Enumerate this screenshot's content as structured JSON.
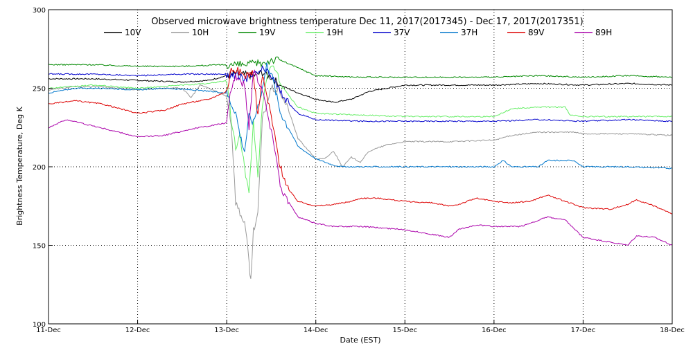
{
  "chart_data": {
    "type": "line",
    "title": "Observed microwave brightness temperature Dec 11, 2017(2017345) - Dec 17, 2017(2017351)",
    "xlabel": "Date (EST)",
    "ylabel": "Brightness Temperature, Deg K",
    "x_unit": "day",
    "xlim": [
      11,
      18
    ],
    "ylim": [
      100,
      300
    ],
    "x_ticks": [
      11,
      12,
      13,
      14,
      15,
      16,
      17,
      18
    ],
    "x_tick_labels": [
      "11-Dec",
      "12-Dec",
      "13-Dec",
      "14-Dec",
      "15-Dec",
      "16-Dec",
      "17-Dec",
      "18-Dec"
    ],
    "y_ticks": [
      100,
      150,
      200,
      250,
      300
    ],
    "y_tick_labels": [
      "100",
      "150",
      "200",
      "250",
      "300"
    ],
    "grid": "dotted",
    "legend_position": "top",
    "series": [
      {
        "name": "10V",
        "color": "#000000",
        "points": [
          [
            11,
            256
          ],
          [
            11.5,
            256
          ],
          [
            12,
            255
          ],
          [
            12.5,
            254
          ],
          [
            12.8,
            255
          ],
          [
            13.0,
            258
          ],
          [
            13.1,
            259
          ],
          [
            13.3,
            258
          ],
          [
            13.4,
            260
          ],
          [
            13.5,
            257
          ],
          [
            13.6,
            252
          ],
          [
            13.8,
            247
          ],
          [
            14.0,
            243
          ],
          [
            14.2,
            241
          ],
          [
            14.4,
            243
          ],
          [
            14.6,
            248
          ],
          [
            15.0,
            252
          ],
          [
            15.5,
            252
          ],
          [
            16.0,
            252
          ],
          [
            16.5,
            253
          ],
          [
            17.0,
            252
          ],
          [
            17.5,
            253
          ],
          [
            18,
            252
          ]
        ]
      },
      {
        "name": "10H",
        "color": "#999999",
        "points": [
          [
            11,
            249
          ],
          [
            11.3,
            251
          ],
          [
            11.6,
            251
          ],
          [
            12,
            249
          ],
          [
            12.3,
            250
          ],
          [
            12.5,
            250
          ],
          [
            12.6,
            244
          ],
          [
            12.7,
            252
          ],
          [
            12.8,
            250
          ],
          [
            13.0,
            245
          ],
          [
            13.05,
            228
          ],
          [
            13.1,
            178
          ],
          [
            13.15,
            170
          ],
          [
            13.2,
            165
          ],
          [
            13.25,
            140
          ],
          [
            13.27,
            127
          ],
          [
            13.3,
            160
          ],
          [
            13.35,
            170
          ],
          [
            13.4,
            230
          ],
          [
            13.5,
            250
          ],
          [
            13.6,
            248
          ],
          [
            13.7,
            235
          ],
          [
            13.8,
            218
          ],
          [
            14.0,
            205
          ],
          [
            14.1,
            205
          ],
          [
            14.2,
            210
          ],
          [
            14.3,
            200
          ],
          [
            14.4,
            206
          ],
          [
            14.5,
            203
          ],
          [
            14.6,
            210
          ],
          [
            14.8,
            214
          ],
          [
            15.0,
            216
          ],
          [
            15.5,
            216
          ],
          [
            16.0,
            217
          ],
          [
            16.2,
            220
          ],
          [
            16.5,
            222
          ],
          [
            16.9,
            222
          ],
          [
            17.0,
            221
          ],
          [
            17.5,
            221
          ],
          [
            18,
            220
          ]
        ]
      },
      {
        "name": "19V",
        "color": "#008800",
        "points": [
          [
            11,
            265
          ],
          [
            11.5,
            265
          ],
          [
            12,
            264
          ],
          [
            12.5,
            264
          ],
          [
            13.0,
            265
          ],
          [
            13.2,
            265
          ],
          [
            13.4,
            266
          ],
          [
            13.5,
            268
          ],
          [
            13.6,
            268
          ],
          [
            13.8,
            263
          ],
          [
            14.0,
            258
          ],
          [
            14.5,
            257
          ],
          [
            15.0,
            257
          ],
          [
            15.5,
            257
          ],
          [
            16.0,
            257
          ],
          [
            16.5,
            258
          ],
          [
            17.0,
            257
          ],
          [
            17.5,
            258
          ],
          [
            18,
            257
          ]
        ]
      },
      {
        "name": "19H",
        "color": "#66ee66",
        "points": [
          [
            11,
            250
          ],
          [
            11.5,
            252
          ],
          [
            12,
            250
          ],
          [
            12.5,
            252
          ],
          [
            12.8,
            253
          ],
          [
            13.0,
            255
          ],
          [
            13.05,
            230
          ],
          [
            13.1,
            212
          ],
          [
            13.15,
            220
          ],
          [
            13.2,
            200
          ],
          [
            13.25,
            182
          ],
          [
            13.3,
            228
          ],
          [
            13.35,
            195
          ],
          [
            13.4,
            240
          ],
          [
            13.45,
            258
          ],
          [
            13.5,
            262
          ],
          [
            13.55,
            262
          ],
          [
            13.6,
            254
          ],
          [
            13.7,
            245
          ],
          [
            13.8,
            238
          ],
          [
            14.0,
            234
          ],
          [
            14.5,
            233
          ],
          [
            15.0,
            232
          ],
          [
            15.5,
            232
          ],
          [
            16.0,
            232
          ],
          [
            16.2,
            237
          ],
          [
            16.5,
            238
          ],
          [
            16.8,
            238
          ],
          [
            16.85,
            233
          ],
          [
            17.0,
            232
          ],
          [
            17.5,
            232
          ],
          [
            18,
            232
          ]
        ]
      },
      {
        "name": "37V",
        "color": "#0000cc",
        "points": [
          [
            11,
            259
          ],
          [
            11.5,
            259
          ],
          [
            12,
            258
          ],
          [
            12.5,
            259
          ],
          [
            13.0,
            259
          ],
          [
            13.1,
            258
          ],
          [
            13.2,
            256
          ],
          [
            13.3,
            258
          ],
          [
            13.4,
            262
          ],
          [
            13.5,
            258
          ],
          [
            13.6,
            248
          ],
          [
            13.7,
            240
          ],
          [
            13.8,
            234
          ],
          [
            14.0,
            230
          ],
          [
            14.5,
            229
          ],
          [
            15.0,
            229
          ],
          [
            15.5,
            229
          ],
          [
            16.0,
            229
          ],
          [
            16.5,
            230
          ],
          [
            17.0,
            229
          ],
          [
            17.5,
            230
          ],
          [
            18,
            229
          ]
        ]
      },
      {
        "name": "37H",
        "color": "#0077cc",
        "points": [
          [
            11,
            247
          ],
          [
            11.3,
            250
          ],
          [
            11.6,
            250
          ],
          [
            12,
            249
          ],
          [
            12.3,
            250
          ],
          [
            12.6,
            249
          ],
          [
            13.0,
            247
          ],
          [
            13.05,
            240
          ],
          [
            13.1,
            235
          ],
          [
            13.15,
            220
          ],
          [
            13.2,
            210
          ],
          [
            13.25,
            232
          ],
          [
            13.3,
            228
          ],
          [
            13.4,
            250
          ],
          [
            13.45,
            265
          ],
          [
            13.5,
            260
          ],
          [
            13.6,
            235
          ],
          [
            13.7,
            224
          ],
          [
            13.8,
            213
          ],
          [
            14.0,
            205
          ],
          [
            14.2,
            201
          ],
          [
            14.3,
            200
          ],
          [
            14.5,
            200
          ],
          [
            15.0,
            200
          ],
          [
            15.5,
            200
          ],
          [
            16.0,
            200
          ],
          [
            16.1,
            204
          ],
          [
            16.2,
            200
          ],
          [
            16.5,
            200
          ],
          [
            16.6,
            204
          ],
          [
            16.9,
            204
          ],
          [
            17.0,
            200
          ],
          [
            17.5,
            200
          ],
          [
            18,
            199
          ]
        ]
      },
      {
        "name": "89V",
        "color": "#dd0000",
        "points": [
          [
            11,
            240
          ],
          [
            11.3,
            242
          ],
          [
            11.6,
            240
          ],
          [
            12,
            234
          ],
          [
            12.3,
            236
          ],
          [
            12.5,
            240
          ],
          [
            12.8,
            243
          ],
          [
            13.0,
            248
          ],
          [
            13.05,
            262
          ],
          [
            13.1,
            262
          ],
          [
            13.2,
            258
          ],
          [
            13.3,
            260
          ],
          [
            13.35,
            232
          ],
          [
            13.4,
            258
          ],
          [
            13.5,
            232
          ],
          [
            13.6,
            200
          ],
          [
            13.7,
            185
          ],
          [
            13.8,
            178
          ],
          [
            14.0,
            175
          ],
          [
            14.2,
            176
          ],
          [
            14.4,
            178
          ],
          [
            14.5,
            180
          ],
          [
            14.7,
            180
          ],
          [
            15.0,
            178
          ],
          [
            15.3,
            177
          ],
          [
            15.5,
            175
          ],
          [
            15.6,
            176
          ],
          [
            15.8,
            180
          ],
          [
            16.0,
            178
          ],
          [
            16.2,
            177
          ],
          [
            16.4,
            178
          ],
          [
            16.6,
            182
          ],
          [
            16.8,
            178
          ],
          [
            17.0,
            174
          ],
          [
            17.3,
            173
          ],
          [
            17.5,
            176
          ],
          [
            17.6,
            179
          ],
          [
            17.8,
            175
          ],
          [
            18,
            170
          ]
        ]
      },
      {
        "name": "89H",
        "color": "#aa00aa",
        "points": [
          [
            11,
            225
          ],
          [
            11.2,
            230
          ],
          [
            11.5,
            226
          ],
          [
            12,
            219
          ],
          [
            12.3,
            220
          ],
          [
            12.6,
            224
          ],
          [
            13.0,
            228
          ],
          [
            13.05,
            250
          ],
          [
            13.1,
            258
          ],
          [
            13.2,
            252
          ],
          [
            13.25,
            225
          ],
          [
            13.3,
            262
          ],
          [
            13.4,
            250
          ],
          [
            13.5,
            222
          ],
          [
            13.55,
            210
          ],
          [
            13.6,
            188
          ],
          [
            13.7,
            177
          ],
          [
            13.8,
            168
          ],
          [
            14.0,
            164
          ],
          [
            14.2,
            162
          ],
          [
            14.4,
            162
          ],
          [
            14.5,
            162
          ],
          [
            15.0,
            160
          ],
          [
            15.3,
            157
          ],
          [
            15.5,
            155
          ],
          [
            15.6,
            160
          ],
          [
            15.8,
            163
          ],
          [
            16.0,
            162
          ],
          [
            16.3,
            162
          ],
          [
            16.6,
            168
          ],
          [
            16.8,
            166
          ],
          [
            17.0,
            155
          ],
          [
            17.3,
            152
          ],
          [
            17.5,
            150
          ],
          [
            17.6,
            156
          ],
          [
            17.8,
            155
          ],
          [
            18,
            150
          ]
        ]
      }
    ]
  }
}
